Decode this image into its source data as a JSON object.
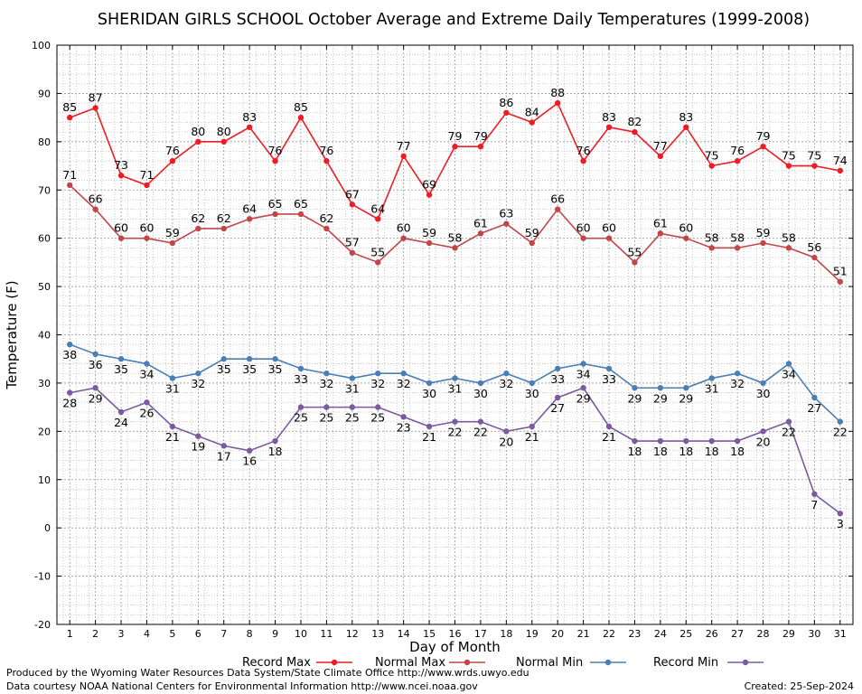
{
  "chart_data": {
    "type": "line",
    "title": "SHERIDAN GIRLS SCHOOL October Average and Extreme Daily Temperatures (1999-2008)",
    "xlabel": "Day of Month",
    "ylabel": "Temperature (F)",
    "ylim": [
      -20,
      100
    ],
    "ytick_step": 10,
    "grid": true,
    "legend_position": "bottom",
    "categories": [
      "1",
      "2",
      "3",
      "4",
      "5",
      "6",
      "7",
      "8",
      "9",
      "10",
      "11",
      "12",
      "13",
      "14",
      "15",
      "16",
      "17",
      "18",
      "19",
      "20",
      "21",
      "22",
      "23",
      "24",
      "25",
      "26",
      "27",
      "28",
      "29",
      "30",
      "31"
    ],
    "series": [
      {
        "name": "Record Max",
        "color": "#ee1c25",
        "label_position": "above",
        "values": [
          85,
          87,
          73,
          71,
          76,
          80,
          80,
          83,
          76,
          85,
          76,
          67,
          64,
          77,
          69,
          79,
          79,
          86,
          84,
          88,
          76,
          83,
          82,
          77,
          83,
          75,
          76,
          79,
          75,
          75,
          74
        ]
      },
      {
        "name": "Normal Max",
        "color": "#c0464a",
        "label_position": "above",
        "values": [
          71,
          66,
          60,
          60,
          59,
          62,
          62,
          64,
          65,
          65,
          62,
          57,
          55,
          60,
          59,
          58,
          61,
          63,
          59,
          66,
          60,
          60,
          55,
          61,
          60,
          58,
          58,
          59,
          58,
          56,
          51
        ]
      },
      {
        "name": "Normal Min",
        "color": "#4a7fb5",
        "label_position": "below",
        "values": [
          38,
          36,
          35,
          34,
          31,
          32,
          35,
          35,
          35,
          33,
          32,
          31,
          32,
          32,
          30,
          31,
          30,
          32,
          30,
          33,
          34,
          33,
          29,
          29,
          29,
          31,
          32,
          30,
          34,
          27,
          22
        ]
      },
      {
        "name": "Record Min",
        "color": "#7b5a9e",
        "label_position": "below",
        "values": [
          28,
          29,
          24,
          26,
          21,
          19,
          17,
          16,
          18,
          25,
          25,
          25,
          25,
          23,
          21,
          22,
          22,
          20,
          21,
          27,
          29,
          21,
          18,
          18,
          18,
          18,
          18,
          20,
          22,
          7,
          3
        ]
      }
    ]
  },
  "footer": {
    "producer": "Produced by the Wyoming Water Resources Data System/State Climate Office http://www.wrds.uwyo.edu",
    "data_source": "Data courtesy NOAA National Centers for Environmental Information http://www.ncei.noaa.gov",
    "created": "Created:  25-Sep-2024"
  }
}
